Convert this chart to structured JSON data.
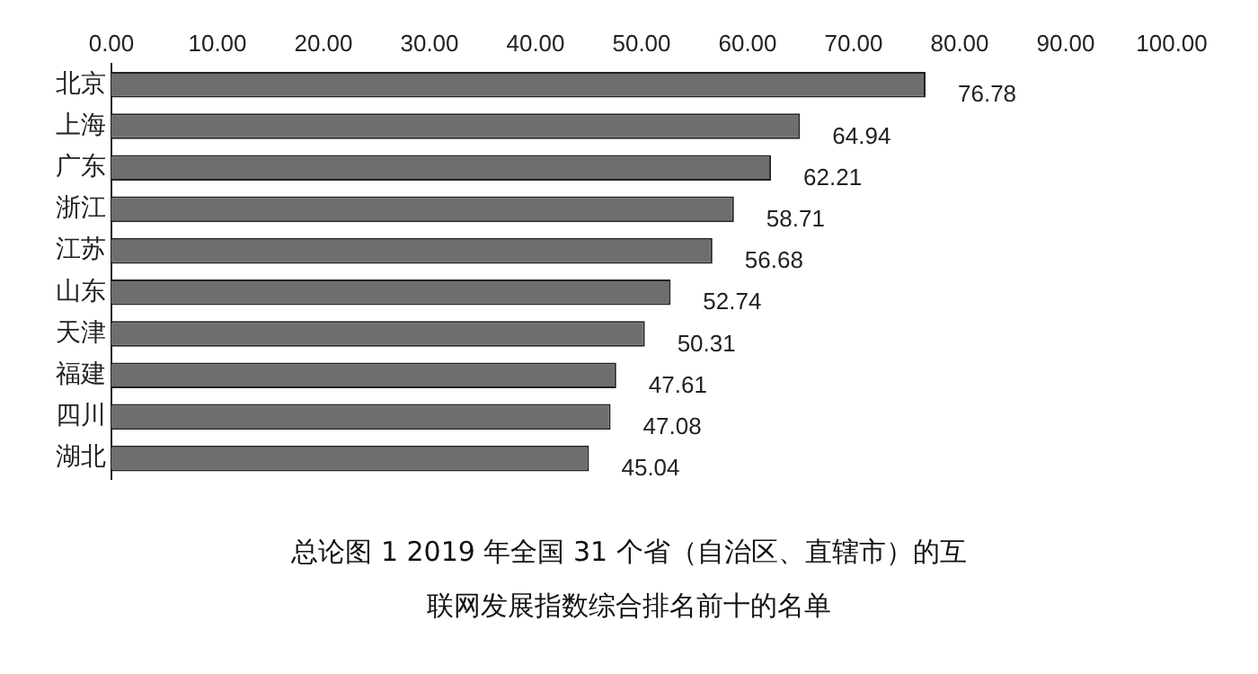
{
  "chart_data": {
    "type": "bar",
    "orientation": "horizontal",
    "title": "总论图 1   2019 年全国 31 个省（自治区、直辖市）的互联网发展指数综合排名前十的名单",
    "categories": [
      "北京",
      "上海",
      "广东",
      "浙江",
      "江苏",
      "山东",
      "天津",
      "福建",
      "四川",
      "湖北"
    ],
    "values": [
      76.78,
      64.94,
      62.21,
      58.71,
      56.68,
      52.74,
      50.31,
      47.61,
      47.08,
      45.04
    ],
    "color": "#6e6e6e",
    "data_labels": true,
    "grid": false,
    "legend": false,
    "xlim": [
      0,
      100
    ],
    "xticks": [
      {
        "value": 0,
        "label": "0.00"
      },
      {
        "value": 10,
        "label": "10.00"
      },
      {
        "value": 20,
        "label": "20.00"
      },
      {
        "value": 30,
        "label": "30.00"
      },
      {
        "value": 40,
        "label": "40.00"
      },
      {
        "value": 50,
        "label": "50.00"
      },
      {
        "value": 60,
        "label": "60.00"
      },
      {
        "value": 70,
        "label": "70.00"
      },
      {
        "value": 80,
        "label": "80.00"
      },
      {
        "value": 90,
        "label": "90.00"
      },
      {
        "value": 100,
        "label": "100.00"
      }
    ]
  }
}
